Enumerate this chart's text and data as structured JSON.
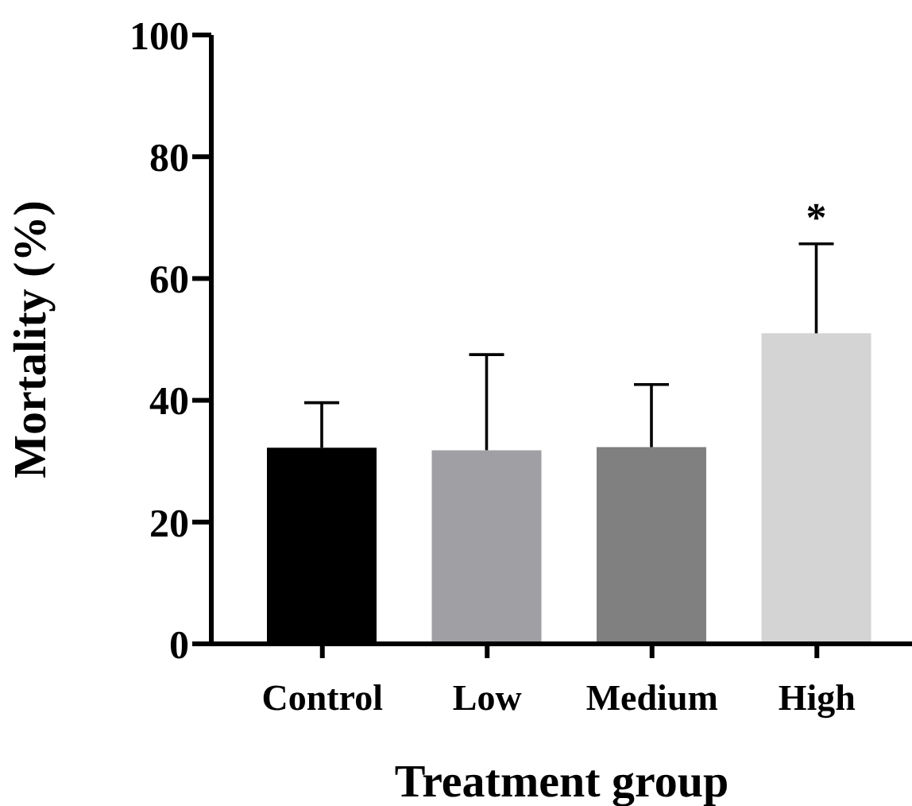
{
  "chart_data": {
    "type": "bar",
    "xlabel": "Treatment group",
    "ylabel": "Mortality (%)",
    "categories": [
      "Control",
      "Low",
      "Medium",
      "High"
    ],
    "values": [
      32.2,
      31.8,
      32.3,
      51.0
    ],
    "colors": [
      "#000000",
      "#a0a0a4",
      "#808080",
      "#d4d4d4"
    ],
    "errors": [
      [
        32.2,
        39.6
      ],
      [
        31.8,
        47.5
      ],
      [
        32.3,
        42.6
      ],
      [
        51.0,
        65.7
      ]
    ],
    "ylim": [
      0,
      100
    ],
    "yticks": [
      0,
      20,
      40,
      60,
      80,
      100
    ],
    "annotations": [
      "*"
    ]
  }
}
